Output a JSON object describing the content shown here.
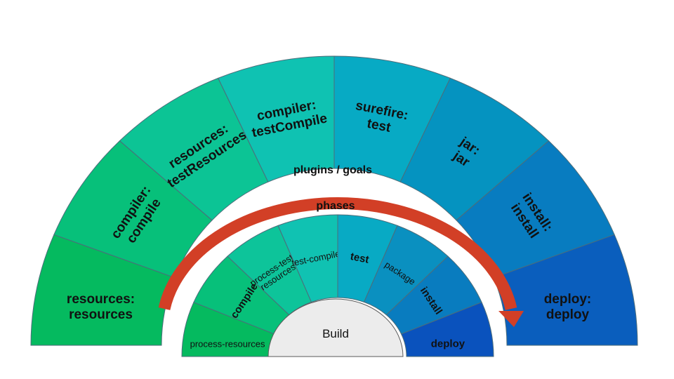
{
  "plugins_title": "plugins / goals",
  "phases_title": "phases",
  "build_label": "Build",
  "colors": {
    "outer": [
      "#05ba5f",
      "#07c07a",
      "#0cc495",
      "#0fc2b2",
      "#07aac4",
      "#0593c0",
      "#087cc0",
      "#0a5ebd"
    ],
    "inner": [
      "#05ba5f",
      "#07c07a",
      "#0dc49a",
      "#10c2b2",
      "#08aac4",
      "#0a90c0",
      "#097cbf",
      "#0a52bd"
    ],
    "arrow": "#d23f26",
    "build": "#ececec"
  },
  "outer_segments": [
    {
      "lines": [
        "resources:",
        "resources"
      ]
    },
    {
      "lines": [
        "compiler:",
        "compile"
      ]
    },
    {
      "lines": [
        "resources:",
        "testResources"
      ]
    },
    {
      "lines": [
        "compiler:",
        "testCompile"
      ]
    },
    {
      "lines": [
        "surefire:",
        "test"
      ]
    },
    {
      "lines": [
        "jar:",
        "jar"
      ]
    },
    {
      "lines": [
        "install:",
        "install"
      ]
    },
    {
      "lines": [
        "deploy:",
        "deploy"
      ]
    }
  ],
  "inner_segments": [
    {
      "lines": [
        "process-resources"
      ]
    },
    {
      "lines": [
        "compile"
      ]
    },
    {
      "lines": [
        "process-test-",
        "resources"
      ]
    },
    {
      "lines": [
        "test-compile"
      ]
    },
    {
      "lines": [
        "test"
      ]
    },
    {
      "lines": [
        "package"
      ]
    },
    {
      "lines": [
        "install"
      ]
    },
    {
      "lines": [
        "deploy"
      ]
    }
  ]
}
